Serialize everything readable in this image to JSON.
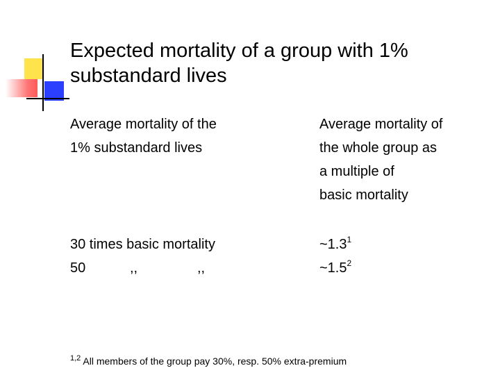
{
  "slide": {
    "title": "Expected mortality of a group with 1% substandard lives",
    "column_left_header": {
      "line1": "Average mortality of the",
      "line2": "1% substandard lives"
    },
    "column_right_header": {
      "line1": "Average mortality of",
      "line2": "the whole group as",
      "line3": "a multiple of",
      "line4": "basic mortality"
    },
    "rows": [
      {
        "left_text": "30 times basic mortality",
        "right_value": "~1.3",
        "right_note": "1"
      },
      {
        "left_text": "50",
        "ditto_1": ",,",
        "ditto_2": ",,",
        "right_value": "~1.5",
        "right_note": "2"
      }
    ],
    "footnote": {
      "marker": "1,2",
      "text": " All members of the group pay 30%, resp. 50% extra-premium"
    },
    "colors": {
      "yellow": "#FFE34D",
      "red": "#FF5A5A",
      "blue": "#2B3FFF",
      "line": "#000000"
    }
  }
}
